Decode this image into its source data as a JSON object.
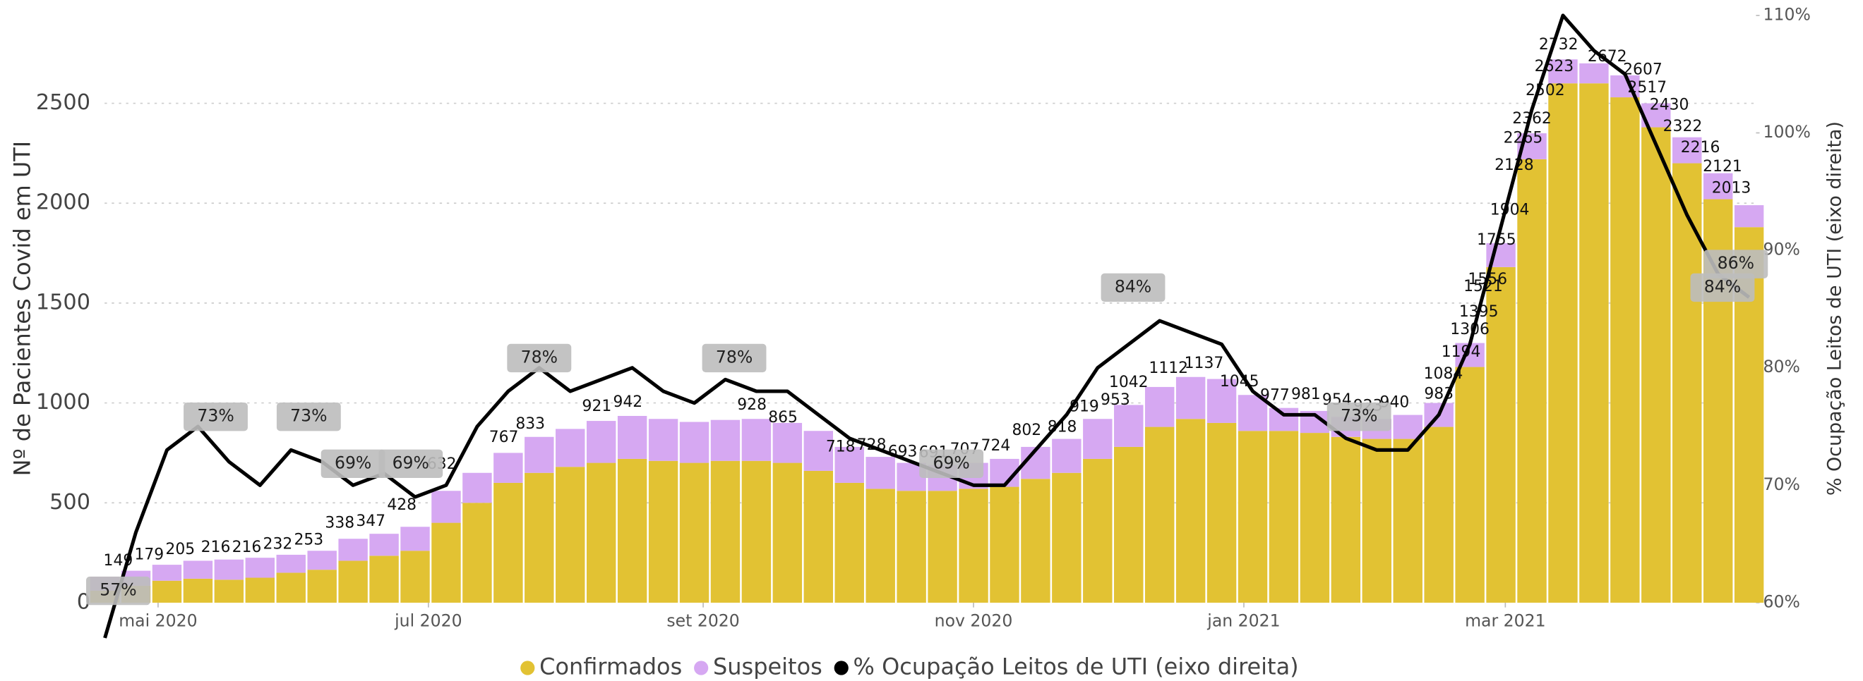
{
  "chart_data": {
    "type": "bar-line",
    "y_label": "Nº de Pacientes Covid em UTI",
    "y2_label": "% Ocupação Leitos de UTI (eixo direita)",
    "x": [
      "2020-04-19",
      "2020-04-26",
      "2020-05-03",
      "2020-05-10",
      "2020-05-17",
      "2020-05-24",
      "2020-05-31",
      "2020-06-07",
      "2020-06-14",
      "2020-06-21",
      "2020-06-28",
      "2020-07-05",
      "2020-07-12",
      "2020-07-19",
      "2020-07-26",
      "2020-08-02",
      "2020-08-09",
      "2020-08-16",
      "2020-08-23",
      "2020-08-30",
      "2020-09-06",
      "2020-09-13",
      "2020-09-20",
      "2020-09-27",
      "2020-10-04",
      "2020-10-11",
      "2020-10-18",
      "2020-10-25",
      "2020-11-01",
      "2020-11-08",
      "2020-11-15",
      "2020-11-22",
      "2020-11-29",
      "2020-12-06",
      "2020-12-13",
      "2020-12-20",
      "2020-12-27",
      "2021-01-03",
      "2021-01-10",
      "2021-01-17",
      "2021-01-24",
      "2021-01-31",
      "2021-02-07",
      "2021-02-14",
      "2021-02-21",
      "2021-02-28",
      "2021-03-07",
      "2021-03-14",
      "2021-03-21",
      "2021-03-28",
      "2021-04-04",
      "2021-04-11",
      "2021-04-18",
      "2021-04-25"
    ],
    "series": [
      {
        "name": "Confirmados",
        "color": "#e2c233",
        "stack": true,
        "values": [
          60,
          85,
          110,
          120,
          115,
          125,
          150,
          165,
          210,
          235,
          260,
          400,
          500,
          600,
          650,
          680,
          700,
          720,
          710,
          700,
          710,
          710,
          700,
          660,
          600,
          570,
          560,
          560,
          570,
          580,
          620,
          650,
          720,
          780,
          880,
          920,
          900,
          860,
          860,
          850,
          830,
          820,
          820,
          880,
          1180,
          1680,
          2220,
          2600,
          2600,
          2530,
          2380,
          2200,
          2020,
          1880
        ]
      },
      {
        "name": "Suspeitos",
        "color": "#d6a8f2",
        "stack": true,
        "values": [
          70,
          75,
          80,
          90,
          101,
          100,
          90,
          95,
          110,
          110,
          120,
          160,
          150,
          150,
          180,
          190,
          210,
          215,
          210,
          205,
          205,
          210,
          200,
          200,
          180,
          160,
          140,
          130,
          130,
          140,
          160,
          170,
          200,
          210,
          200,
          210,
          220,
          180,
          115,
          110,
          100,
          100,
          120,
          120,
          120,
          120,
          130,
          120,
          100,
          110,
          120,
          130,
          130,
          110
        ]
      },
      {
        "name": "% Ocupação Leitos de UTI (eixo direita)",
        "color": "#000000",
        "axis": "y2",
        "values": [
          57,
          66,
          73,
          75,
          72,
          70,
          73,
          72,
          70,
          71,
          69,
          70,
          75,
          78,
          80,
          78,
          79,
          80,
          78,
          77,
          79,
          78,
          78,
          76,
          74,
          73,
          72,
          71,
          70,
          70,
          73,
          76,
          80,
          82,
          84,
          83,
          82,
          78,
          76,
          76,
          74,
          73,
          73,
          76,
          82,
          92,
          102,
          110,
          107,
          105,
          99,
          93,
          88,
          86
        ]
      }
    ],
    "total_labels": [
      {
        "x": "2020-04-22",
        "value": 149
      },
      {
        "x": "2020-04-29",
        "value": 179
      },
      {
        "x": "2020-05-06",
        "value": 205
      },
      {
        "x": "2020-05-14",
        "value": 216
      },
      {
        "x": "2020-05-21",
        "value": 216
      },
      {
        "x": "2020-05-28",
        "value": 232
      },
      {
        "x": "2020-06-04",
        "value": 253
      },
      {
        "x": "2020-06-11",
        "value": 338
      },
      {
        "x": "2020-06-18",
        "value": 347
      },
      {
        "x": "2020-06-25",
        "value": 428
      },
      {
        "x": "2020-07-04",
        "value": 632
      },
      {
        "x": "2020-07-18",
        "value": 767
      },
      {
        "x": "2020-07-24",
        "value": 833
      },
      {
        "x": "2020-08-08",
        "value": 921
      },
      {
        "x": "2020-08-15",
        "value": 942
      },
      {
        "x": "2020-09-12",
        "value": 928
      },
      {
        "x": "2020-09-19",
        "value": 865
      },
      {
        "x": "2020-10-02",
        "value": 718
      },
      {
        "x": "2020-10-09",
        "value": 728
      },
      {
        "x": "2020-10-16",
        "value": 693
      },
      {
        "x": "2020-10-23",
        "value": 691
      },
      {
        "x": "2020-10-30",
        "value": 707
      },
      {
        "x": "2020-11-06",
        "value": 724
      },
      {
        "x": "2020-11-13",
        "value": 802
      },
      {
        "x": "2020-11-21",
        "value": 818
      },
      {
        "x": "2020-11-26",
        "value": 919
      },
      {
        "x": "2020-12-03",
        "value": 953
      },
      {
        "x": "2020-12-06",
        "value": 1042
      },
      {
        "x": "2020-12-15",
        "value": 1112
      },
      {
        "x": "2020-12-23",
        "value": 1137
      },
      {
        "x": "2020-12-31",
        "value": 1045
      },
      {
        "x": "2021-01-08",
        "value": 977
      },
      {
        "x": "2021-01-15",
        "value": 981
      },
      {
        "x": "2021-01-22",
        "value": 954
      },
      {
        "x": "2021-01-29",
        "value": 923
      },
      {
        "x": "2021-02-04",
        "value": 940
      },
      {
        "x": "2021-02-14",
        "value": 983
      },
      {
        "x": "2021-02-15",
        "value": 1084
      },
      {
        "x": "2021-02-19",
        "value": 1194
      },
      {
        "x": "2021-02-21",
        "value": 1306
      },
      {
        "x": "2021-02-23",
        "value": 1395
      },
      {
        "x": "2021-02-24",
        "value": 1521
      },
      {
        "x": "2021-02-25",
        "value": 1556
      },
      {
        "x": "2021-02-27",
        "value": 1755
      },
      {
        "x": "2021-03-02",
        "value": 1904
      },
      {
        "x": "2021-03-03",
        "value": 2128
      },
      {
        "x": "2021-03-05",
        "value": 2265
      },
      {
        "x": "2021-03-07",
        "value": 2362
      },
      {
        "x": "2021-03-10",
        "value": 2502
      },
      {
        "x": "2021-03-12",
        "value": 2623
      },
      {
        "x": "2021-03-13",
        "value": 2732
      },
      {
        "x": "2021-03-24",
        "value": 2672
      },
      {
        "x": "2021-04-01",
        "value": 2607
      },
      {
        "x": "2021-04-02",
        "value": 2517
      },
      {
        "x": "2021-04-07",
        "value": 2430
      },
      {
        "x": "2021-04-10",
        "value": 2322
      },
      {
        "x": "2021-04-14",
        "value": 2216
      },
      {
        "x": "2021-04-19",
        "value": 2121
      },
      {
        "x": "2021-04-21",
        "value": 2013
      }
    ],
    "line_labels": [
      {
        "x": "2020-04-22",
        "value": 57,
        "label": "57%"
      },
      {
        "x": "2020-05-14",
        "value": 73,
        "label": "73%"
      },
      {
        "x": "2020-06-04",
        "value": 73,
        "label": "73%"
      },
      {
        "x": "2020-06-14",
        "value": 69,
        "label": "69%"
      },
      {
        "x": "2020-06-27",
        "value": 69,
        "label": "69%"
      },
      {
        "x": "2020-07-26",
        "value": 78,
        "label": "78%"
      },
      {
        "x": "2020-09-08",
        "value": 78,
        "label": "78%"
      },
      {
        "x": "2020-10-27",
        "value": 69,
        "label": "69%"
      },
      {
        "x": "2020-12-07",
        "value": 84,
        "label": "84%"
      },
      {
        "x": "2021-01-27",
        "value": 73,
        "label": "73%"
      },
      {
        "x": "2021-04-19",
        "value": 84,
        "label": "84%"
      },
      {
        "x": "2021-04-22",
        "value": 86,
        "label": "86%"
      }
    ],
    "xticks": [
      {
        "value": "2020-05-01",
        "label": "mai 2020"
      },
      {
        "value": "2020-07-01",
        "label": "jul 2020"
      },
      {
        "value": "2020-09-01",
        "label": "set 2020"
      },
      {
        "value": "2020-11-01",
        "label": "nov 2020"
      },
      {
        "value": "2021-01-01",
        "label": "jan 2021"
      },
      {
        "value": "2021-03-01",
        "label": "mar 2021"
      }
    ],
    "ylim": [
      0,
      2940
    ],
    "yticks": [
      0,
      500,
      1000,
      1500,
      2000,
      2500
    ],
    "y2lim": [
      60,
      110
    ],
    "y2ticks": [
      {
        "value": 60,
        "label": "60%"
      },
      {
        "value": 70,
        "label": "70%"
      },
      {
        "value": 80,
        "label": "80%"
      },
      {
        "value": 90,
        "label": "90%"
      },
      {
        "value": 100,
        "label": "100%"
      },
      {
        "value": 110,
        "label": "110%"
      }
    ],
    "grid": true
  }
}
